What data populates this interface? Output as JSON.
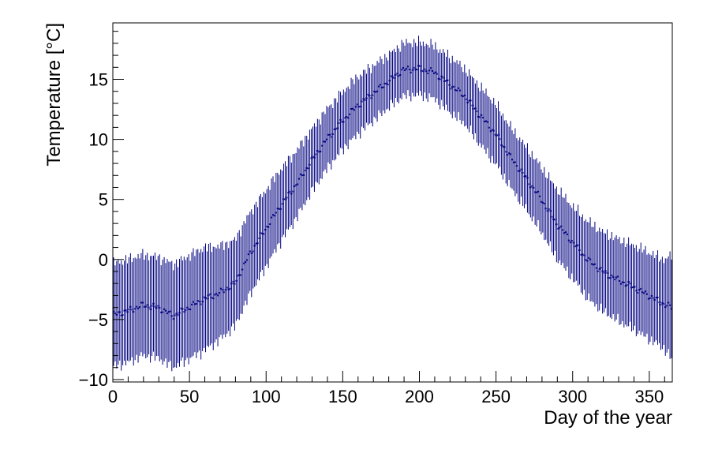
{
  "chart_data": {
    "type": "scatter",
    "title": "",
    "xlabel": "Day of the year",
    "ylabel": "Temperature [°C]",
    "xlim": [
      0,
      365
    ],
    "ylim": [
      -10.2,
      19.7
    ],
    "x_ticks": [
      0,
      50,
      100,
      150,
      200,
      250,
      300,
      350
    ],
    "y_ticks": [
      -10,
      -5,
      0,
      5,
      10,
      15
    ],
    "grid": false,
    "legend": "none",
    "colors": {
      "series": "#000080",
      "axes": "#000000",
      "background": "#ffffff"
    },
    "series": [
      {
        "x": [
          1,
          10,
          20,
          30,
          40,
          50,
          60,
          70,
          80,
          90,
          100,
          110,
          120,
          130,
          140,
          150,
          160,
          170,
          180,
          190,
          200,
          210,
          220,
          230,
          240,
          250,
          260,
          270,
          280,
          290,
          300,
          310,
          320,
          330,
          340,
          350,
          360,
          365
        ],
        "y": [
          -4.6,
          -4.3,
          -3.8,
          -4.0,
          -4.7,
          -4.0,
          -3.3,
          -2.8,
          -2.0,
          0.5,
          2.5,
          4.5,
          6.2,
          8.2,
          10.0,
          11.5,
          12.8,
          13.8,
          14.8,
          15.8,
          15.9,
          15.6,
          14.6,
          13.6,
          12.0,
          10.5,
          8.5,
          6.8,
          5.0,
          3.0,
          1.5,
          0.0,
          -1.0,
          -1.7,
          -2.3,
          -3.0,
          -3.7,
          -4.0
        ],
        "y_err": [
          4.3,
          4.3,
          4.2,
          4.2,
          4.3,
          4.3,
          4.3,
          3.9,
          3.6,
          3.4,
          3.2,
          3.0,
          2.8,
          2.6,
          2.5,
          2.4,
          2.4,
          2.3,
          2.2,
          2.2,
          2.2,
          2.2,
          2.3,
          2.3,
          2.4,
          2.5,
          2.5,
          2.6,
          2.7,
          2.9,
          3.0,
          3.2,
          3.3,
          3.4,
          3.5,
          3.6,
          3.7,
          4.3
        ]
      }
    ]
  }
}
